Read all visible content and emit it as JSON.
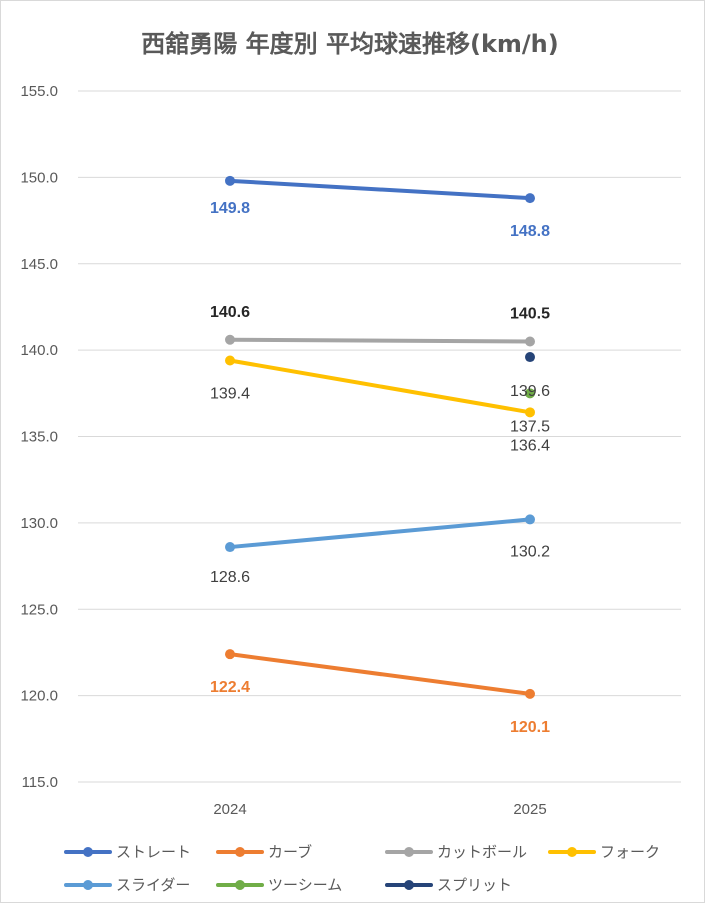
{
  "chart_data": {
    "type": "line",
    "title": "西舘勇陽 年度別 平均球速推移(km/h)",
    "categories": [
      "2024",
      "2025"
    ],
    "ylim": [
      115.0,
      155.0
    ],
    "yticks": [
      "115.0",
      "120.0",
      "125.0",
      "130.0",
      "135.0",
      "140.0",
      "145.0",
      "150.0",
      "155.0"
    ],
    "grid": true,
    "legend_position": "bottom",
    "series": [
      {
        "name": "ストレート",
        "color": "#4472c4",
        "values": [
          149.8,
          148.8
        ],
        "labels": [
          "149.8",
          "148.8"
        ],
        "label_color": "#4472c4",
        "label_pos": "below",
        "bold": true
      },
      {
        "name": "カーブ",
        "color": "#ed7d31",
        "values": [
          122.4,
          120.1
        ],
        "labels": [
          "122.4",
          "120.1"
        ],
        "label_color": "#ed7d31",
        "label_pos": "below",
        "bold": true
      },
      {
        "name": "カットボール",
        "color": "#a5a5a5",
        "values": [
          140.6,
          140.5
        ],
        "labels": [
          "140.6",
          "140.5"
        ],
        "label_color": "#262626",
        "label_pos": "above",
        "bold": true
      },
      {
        "name": "フォーク",
        "color": "#ffc000",
        "values": [
          139.4,
          136.4
        ],
        "labels": [
          "139.4",
          "136.4"
        ],
        "label_color": "#404040",
        "label_pos": "below",
        "bold": false
      },
      {
        "name": "スライダー",
        "color": "#5b9bd5",
        "values": [
          128.6,
          130.2
        ],
        "labels": [
          "128.6",
          "130.2"
        ],
        "label_color": "#404040",
        "label_pos": "below",
        "bold": false
      },
      {
        "name": "ツーシーム",
        "color": "#70ad47",
        "values": [
          null,
          137.5
        ],
        "labels": [
          null,
          "137.5"
        ],
        "label_color": "#404040",
        "label_pos": "below",
        "bold": false
      },
      {
        "name": "スプリット",
        "color": "#264478",
        "values": [
          null,
          139.6
        ],
        "labels": [
          null,
          "139.6"
        ],
        "label_color": "#404040",
        "label_pos": "below",
        "bold": false
      }
    ]
  }
}
